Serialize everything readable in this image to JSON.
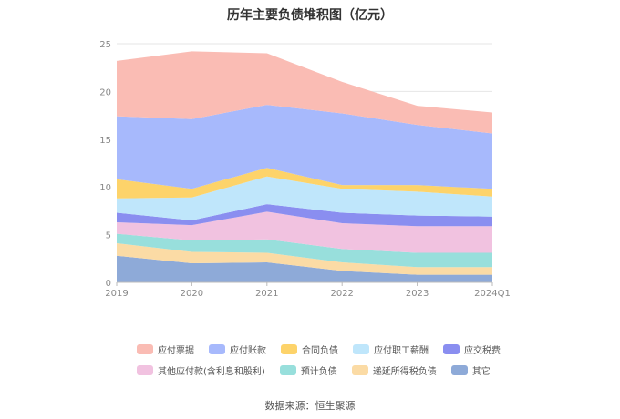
{
  "chart_data": {
    "type": "area",
    "title": "历年主要负债堆积图（亿元）",
    "categories": [
      "2019",
      "2020",
      "2021",
      "2022",
      "2023",
      "2024Q1"
    ],
    "ylim": [
      0,
      25
    ],
    "yticks": [
      "0",
      "5",
      "10",
      "15",
      "20",
      "25"
    ],
    "grid": true,
    "legend_position": "bottom",
    "stacked": true,
    "series": [
      {
        "name": "其它",
        "color": "#8eaad8",
        "values": [
          2.8,
          2.0,
          2.1,
          1.2,
          0.8,
          0.8
        ]
      },
      {
        "name": "递延所得税负债",
        "color": "#fbdba5",
        "values": [
          1.3,
          1.2,
          1.0,
          0.9,
          0.8,
          0.8
        ]
      },
      {
        "name": "预计负债",
        "color": "#98dfdc",
        "values": [
          1.0,
          1.2,
          1.4,
          1.4,
          1.5,
          1.5
        ]
      },
      {
        "name": "其他应付款(含利息和股利)",
        "color": "#f1c2e0",
        "values": [
          1.2,
          1.6,
          2.9,
          2.7,
          2.8,
          2.8
        ]
      },
      {
        "name": "应交税费",
        "color": "#8a8ef0",
        "values": [
          1.0,
          0.5,
          0.8,
          1.1,
          1.1,
          1.0
        ]
      },
      {
        "name": "应付职工薪酬",
        "color": "#bfe6fb",
        "values": [
          1.5,
          2.4,
          2.9,
          2.5,
          2.5,
          2.1
        ]
      },
      {
        "name": "合同负债",
        "color": "#fdd36a",
        "values": [
          2.0,
          0.9,
          0.9,
          0.4,
          0.7,
          0.8
        ]
      },
      {
        "name": "应付账款",
        "color": "#a7b9fc",
        "values": [
          6.6,
          7.3,
          6.6,
          7.5,
          6.3,
          5.8
        ]
      },
      {
        "name": "应付票据",
        "color": "#fabcb4",
        "values": [
          5.8,
          7.1,
          5.4,
          3.3,
          2.0,
          2.2
        ]
      }
    ]
  },
  "legend_order": [
    "应付票据",
    "应付账款",
    "合同负债",
    "应付职工薪酬",
    "应交税费",
    "其他应付款(含利息和股利)",
    "预计负债",
    "递延所得税负债",
    "其它"
  ],
  "source_text": "数据来源：恒生聚源"
}
